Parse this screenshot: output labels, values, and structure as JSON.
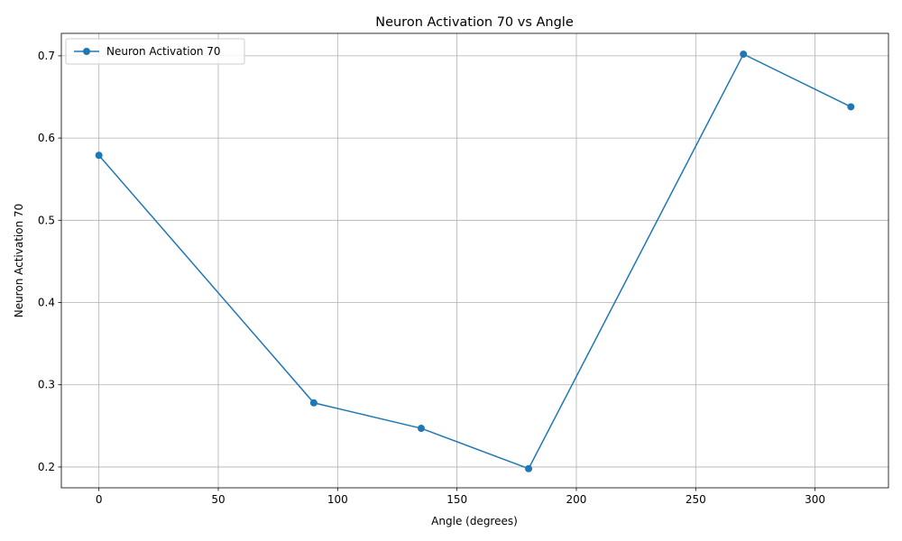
{
  "chart_data": {
    "type": "line",
    "title": "Neuron Activation 70 vs Angle",
    "xlabel": "Angle (degrees)",
    "ylabel": "Neuron Activation 70",
    "xlim": [
      -15.75,
      330.75
    ],
    "ylim": [
      0.1747,
      0.7273
    ],
    "xticks": [
      0,
      50,
      100,
      150,
      200,
      250,
      300
    ],
    "yticks": [
      0.2,
      0.3,
      0.4,
      0.5,
      0.6,
      0.7
    ],
    "grid": true,
    "legend_position": "top-left",
    "series": [
      {
        "name": "Neuron Activation 70",
        "color": "#1f77b4",
        "marker": "circle",
        "x": [
          0,
          90,
          135,
          180,
          270,
          315
        ],
        "y": [
          0.579,
          0.278,
          0.247,
          0.198,
          0.702,
          0.638
        ]
      }
    ]
  }
}
